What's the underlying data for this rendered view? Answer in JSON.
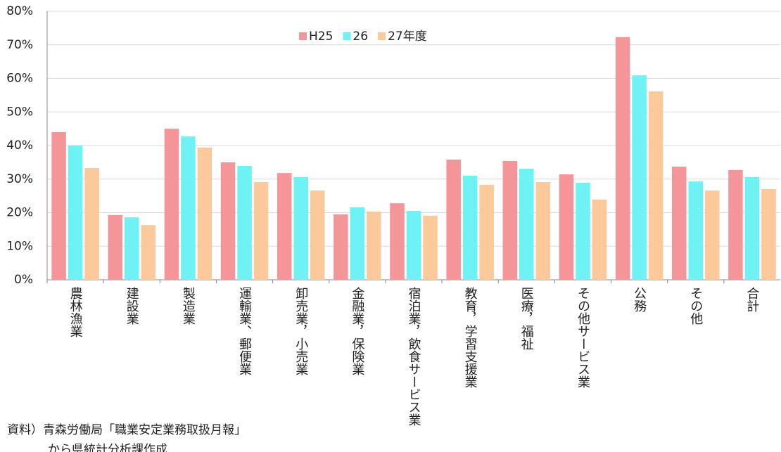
{
  "chart_data": {
    "type": "bar",
    "categories": [
      "農林漁業",
      "建設業",
      "製造業",
      "運輸業、郵便業",
      "卸売業，小売業",
      "金融業，保険業",
      "宿泊業，飲食サービス業",
      "教育，学習支援業",
      "医療，福祉",
      "その他サービス業",
      "公務",
      "その他",
      "合計"
    ],
    "series": [
      {
        "name": "H25",
        "color": "#f4959a",
        "values": [
          44.0,
          19.3,
          45.0,
          35.0,
          31.8,
          19.5,
          22.8,
          35.8,
          35.4,
          31.4,
          72.3,
          33.7,
          32.7
        ]
      },
      {
        "name": "26",
        "color": "#6ff2f4",
        "values": [
          40.0,
          18.6,
          42.7,
          33.9,
          30.6,
          21.6,
          20.5,
          31.0,
          33.1,
          28.9,
          60.9,
          29.3,
          30.6
        ]
      },
      {
        "name": "27年度",
        "color": "#fbc99a",
        "values": [
          33.3,
          16.3,
          39.4,
          29.1,
          26.6,
          20.3,
          19.1,
          28.3,
          29.1,
          23.9,
          56.1,
          26.6,
          27.0
        ]
      }
    ],
    "ylim": [
      0,
      80
    ],
    "yticks": [
      {
        "value": 0,
        "label": "0%"
      },
      {
        "value": 10,
        "label": "10%"
      },
      {
        "value": 20,
        "label": "20%"
      },
      {
        "value": 30,
        "label": "30%"
      },
      {
        "value": 40,
        "label": "40%"
      },
      {
        "value": 50,
        "label": "50%"
      },
      {
        "value": 60,
        "label": "60%"
      },
      {
        "value": 70,
        "label": "70%"
      },
      {
        "value": 80,
        "label": "80%"
      }
    ],
    "grid": true,
    "legend": "top",
    "source": [
      "資料）青森労働局「職業安定業務取扱月報」",
      "から県統計分析課作成"
    ]
  }
}
